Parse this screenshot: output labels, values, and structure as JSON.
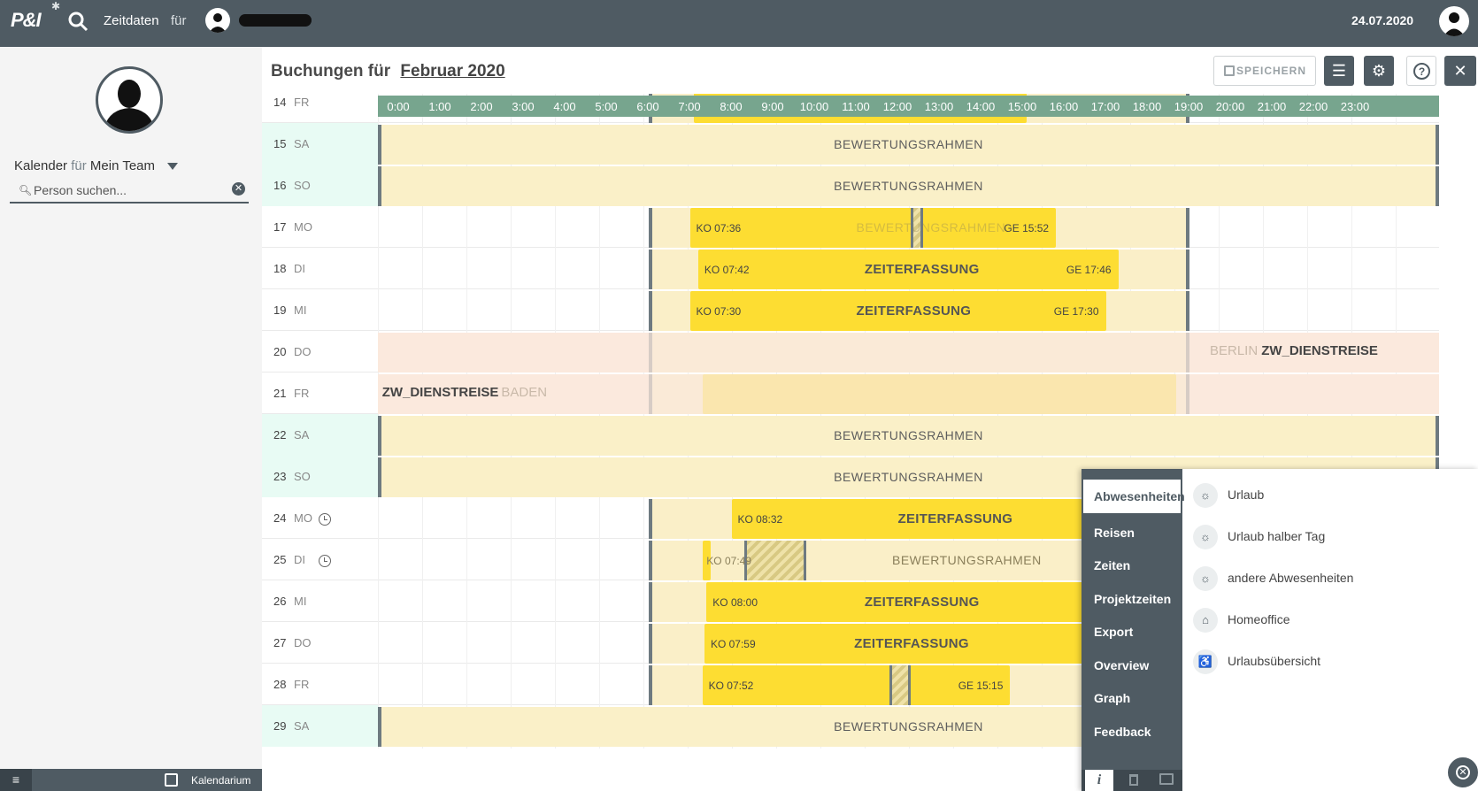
{
  "app": {
    "logo": "P&I",
    "title": "Zeitdaten",
    "fuer": "für",
    "date": "24.07.2020"
  },
  "sidebar": {
    "kal_label": "Kalender",
    "kal_fuer": "für",
    "kal_team": "Mein Team",
    "search_placeholder": "Person suchen...",
    "bottom_label": "Kalendarium"
  },
  "main": {
    "title": "Buchungen für",
    "month": "Februar 2020",
    "save_label": "SPEICHERN",
    "help": "?",
    "close": "✕"
  },
  "hours": [
    "0:00",
    "1:00",
    "2:00",
    "3:00",
    "4:00",
    "5:00",
    "6:00",
    "7:00",
    "8:00",
    "9:00",
    "10:00",
    "11:00",
    "12:00",
    "13:00",
    "14:00",
    "15:00",
    "16:00",
    "17:00",
    "18:00",
    "19:00",
    "20:00",
    "21:00",
    "22:00",
    "23:00"
  ],
  "labels": {
    "frame": "BEWERTUNGSRAHMEN",
    "zeiterfassung": "ZEITERFASSUNG",
    "dienstreise": "ZW_DIENSTREISE",
    "city1": "BERLIN",
    "city2": "BADEN"
  },
  "rows": [
    {
      "day": "14",
      "wd": "FR"
    },
    {
      "day": "15",
      "wd": "SA"
    },
    {
      "day": "16",
      "wd": "SO"
    },
    {
      "day": "17",
      "wd": "MO",
      "ko": "KO 07:36",
      "ge": "GE 15:52"
    },
    {
      "day": "18",
      "wd": "DI",
      "ko": "KO 07:42",
      "ge": "GE 17:46"
    },
    {
      "day": "19",
      "wd": "MI",
      "ko": "KO 07:30",
      "ge": "GE 17:30"
    },
    {
      "day": "20",
      "wd": "DO"
    },
    {
      "day": "21",
      "wd": "FR"
    },
    {
      "day": "22",
      "wd": "SA"
    },
    {
      "day": "23",
      "wd": "SO"
    },
    {
      "day": "24",
      "wd": "MO",
      "ko": "KO 08:32"
    },
    {
      "day": "25",
      "wd": "DI",
      "ko": "KO 07:49"
    },
    {
      "day": "26",
      "wd": "MI",
      "ko": "KO 08:00"
    },
    {
      "day": "27",
      "wd": "DO",
      "ko": "KO 07:59"
    },
    {
      "day": "28",
      "wd": "FR",
      "ko": "KO 07:52",
      "ge": "GE 15:15"
    },
    {
      "day": "29",
      "wd": "SA"
    }
  ],
  "menu": {
    "nav": [
      "Abwesenheiten",
      "Reisen",
      "Zeiten",
      "Projektzeiten",
      "Export",
      "Overview",
      "Graph",
      "Feedback"
    ],
    "footer_info": "i",
    "options": [
      {
        "label": "Urlaub",
        "icon": "sun-icon",
        "glyph": "☼"
      },
      {
        "label": "Urlaub halber Tag",
        "icon": "sun-icon",
        "glyph": "☼"
      },
      {
        "label": "andere Abwesenheiten",
        "icon": "sun-icon",
        "glyph": "☼"
      },
      {
        "label": "Homeoffice",
        "icon": "home-icon",
        "glyph": "⌂"
      },
      {
        "label": "Urlaubsübersicht",
        "icon": "person-icon",
        "glyph": "♿"
      }
    ]
  },
  "colors": {
    "topbar": "#4f5b63",
    "header_green": "#77a58e",
    "bar_yellow": "#fddd32",
    "frame_cream": "#faf0c8",
    "weekend": "#e8fbf4"
  }
}
